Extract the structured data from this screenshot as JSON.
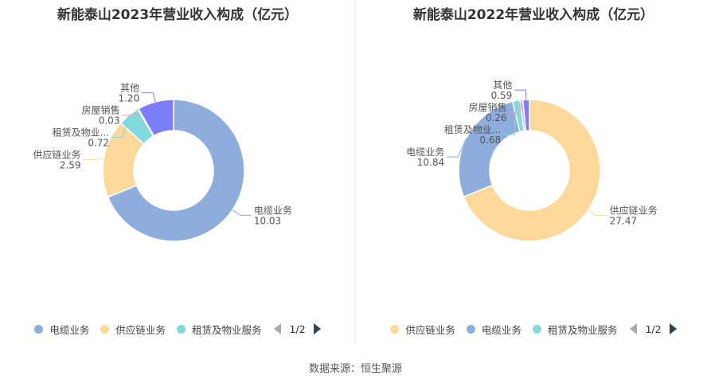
{
  "source_label": "数据来源：恒生聚源",
  "colors": {
    "电缆业务": "#8eacdc",
    "供应链业务": "#fdd89a",
    "租赁及物业服务": "#82d9dc",
    "房屋销售": "#e8a0cc",
    "其他": "#7b7ef6"
  },
  "chart_data": [
    {
      "type": "pie",
      "title": "新能泰山2023年营业收入构成（亿元）",
      "slices": [
        {
          "name": "电缆业务",
          "value": 10.03,
          "value_label": "10.03"
        },
        {
          "name": "供应链业务",
          "value": 2.59,
          "value_label": "2.59"
        },
        {
          "name": "租赁及物业服务",
          "value": 0.72,
          "value_label": "0.72",
          "display_name": "租赁及物业..."
        },
        {
          "name": "房屋销售",
          "value": 0.03,
          "value_label": "0.03"
        },
        {
          "name": "其他",
          "value": 1.2,
          "value_label": "1.20"
        }
      ],
      "legend": {
        "items": [
          "电缆业务",
          "供应链业务",
          "租赁及物业服务"
        ],
        "page": "1/2",
        "placement": "bottom"
      }
    },
    {
      "type": "pie",
      "title": "新能泰山2022年营业收入构成（亿元）",
      "slices": [
        {
          "name": "供应链业务",
          "value": 27.47,
          "value_label": "27.47"
        },
        {
          "name": "电缆业务",
          "value": 10.84,
          "value_label": "10.84"
        },
        {
          "name": "租赁及物业服务",
          "value": 0.68,
          "value_label": "0.68",
          "display_name": "租赁及物业..."
        },
        {
          "name": "房屋销售",
          "value": 0.26,
          "value_label": "0.26"
        },
        {
          "name": "其他",
          "value": 0.59,
          "value_label": "0.59"
        }
      ],
      "legend": {
        "items": [
          "供应链业务",
          "电缆业务",
          "租赁及物业服务"
        ],
        "page": "1/2",
        "placement": "bottom"
      }
    }
  ]
}
